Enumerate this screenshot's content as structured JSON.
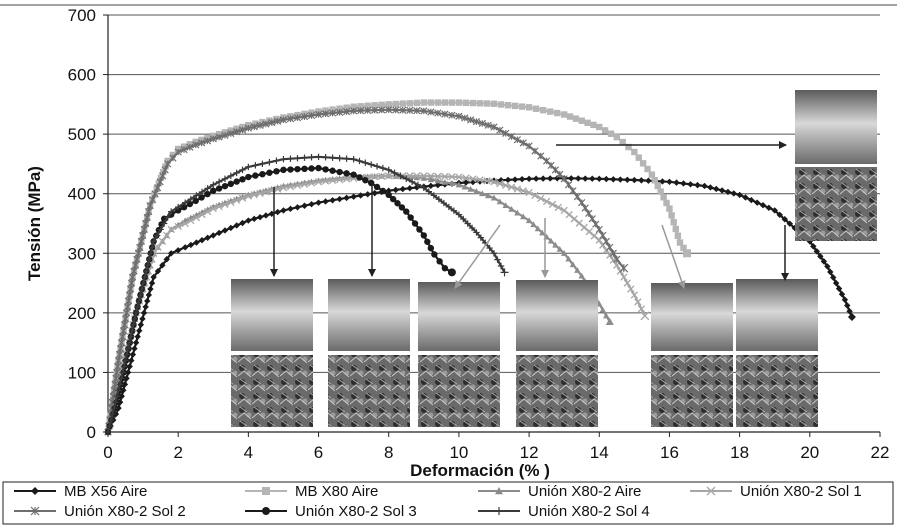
{
  "chart_data": {
    "type": "line",
    "title": "",
    "xlabel": "Deformación (% )",
    "ylabel": "Tensión (MPa)",
    "xlim": [
      0,
      22
    ],
    "ylim": [
      0,
      700
    ],
    "xticks": [
      0,
      2,
      4,
      6,
      8,
      10,
      12,
      14,
      16,
      18,
      20,
      22
    ],
    "yticks": [
      0,
      100,
      200,
      300,
      400,
      500,
      600,
      700
    ],
    "grid": "horizontal",
    "legend_position": "bottom",
    "series": [
      {
        "name": "MB X56 Aire",
        "color": "#1a1a1a",
        "marker": "diamond",
        "x": [
          0,
          0.3,
          0.8,
          1.3,
          1.8,
          2.2,
          3,
          4,
          5,
          6,
          7,
          8,
          9,
          10,
          11,
          12,
          13,
          14,
          15,
          16,
          17,
          18,
          19,
          20,
          20.5,
          21,
          21.2
        ],
        "y": [
          0,
          40,
          150,
          260,
          300,
          310,
          330,
          355,
          372,
          385,
          395,
          405,
          412,
          418,
          422,
          425,
          426,
          425,
          423,
          420,
          413,
          398,
          372,
          320,
          278,
          222,
          193
        ]
      },
      {
        "name": "MB X80 Aire",
        "color": "#b5b5b5",
        "marker": "square",
        "x": [
          0,
          0.3,
          0.7,
          1.2,
          1.7,
          2.0,
          2.5,
          3,
          4,
          5,
          6,
          7,
          8,
          9,
          10,
          11,
          12,
          13,
          14,
          14.5,
          15,
          15.5,
          16,
          16.3,
          16.5
        ],
        "y": [
          0,
          120,
          260,
          380,
          455,
          475,
          487,
          497,
          515,
          528,
          538,
          546,
          550,
          553,
          553,
          551,
          545,
          533,
          512,
          495,
          470,
          432,
          375,
          318,
          300
        ]
      },
      {
        "name": "Unión X80-2 Aire",
        "color": "#8c8c8c",
        "marker": "triangle",
        "x": [
          0,
          0.3,
          0.8,
          1.3,
          1.8,
          2.2,
          3,
          4,
          5,
          6,
          7,
          8,
          9,
          10,
          11,
          12,
          13,
          13.5,
          14,
          14.3
        ],
        "y": [
          0,
          80,
          200,
          300,
          340,
          355,
          378,
          398,
          413,
          422,
          428,
          430,
          426,
          415,
          393,
          355,
          300,
          262,
          215,
          185
        ]
      },
      {
        "name": "Unión X80-2 Sol 1",
        "color": "#a6a6a6",
        "marker": "x",
        "x": [
          0,
          0.3,
          0.8,
          1.3,
          1.8,
          2.2,
          3,
          4,
          5,
          6,
          7,
          8,
          9,
          10,
          11,
          12,
          13,
          14,
          14.5,
          15,
          15.3
        ],
        "y": [
          0,
          80,
          200,
          300,
          340,
          350,
          375,
          396,
          410,
          420,
          426,
          430,
          430,
          428,
          420,
          402,
          372,
          322,
          280,
          230,
          195
        ]
      },
      {
        "name": "Unión X80-2 Sol 2",
        "color": "#6e6e6e",
        "marker": "star",
        "x": [
          0,
          0.3,
          0.7,
          1.2,
          1.7,
          2.0,
          2.5,
          3,
          4,
          5,
          6,
          7,
          8,
          9,
          10,
          11,
          12,
          12.5,
          13,
          13.5,
          14,
          14.5,
          14.7
        ],
        "y": [
          0,
          120,
          260,
          380,
          450,
          470,
          482,
          492,
          510,
          524,
          533,
          539,
          541,
          539,
          530,
          512,
          480,
          455,
          425,
          385,
          340,
          290,
          275
        ]
      },
      {
        "name": "Unión X80-2 Sol 3",
        "color": "#1a1a1a",
        "marker": "circle",
        "x": [
          0,
          0.3,
          0.8,
          1.3,
          1.6,
          2.0,
          2.5,
          3,
          4,
          5,
          6,
          7,
          7.5,
          8,
          8.5,
          9,
          9.3,
          9.6,
          9.8
        ],
        "y": [
          0,
          60,
          200,
          320,
          358,
          372,
          388,
          405,
          428,
          440,
          443,
          432,
          418,
          398,
          370,
          330,
          298,
          275,
          268
        ]
      },
      {
        "name": "Unión X80-2 Sol 4",
        "color": "#3a3a3a",
        "marker": "plus",
        "x": [
          0,
          0.3,
          0.8,
          1.3,
          1.8,
          2.2,
          3,
          4,
          5,
          6,
          7,
          8,
          9,
          10,
          10.5,
          11,
          11.3
        ],
        "y": [
          0,
          70,
          200,
          320,
          370,
          385,
          415,
          445,
          458,
          462,
          458,
          440,
          410,
          365,
          335,
          300,
          268
        ]
      }
    ],
    "annotations": {
      "inset_images": 9,
      "arrows": 8
    }
  }
}
